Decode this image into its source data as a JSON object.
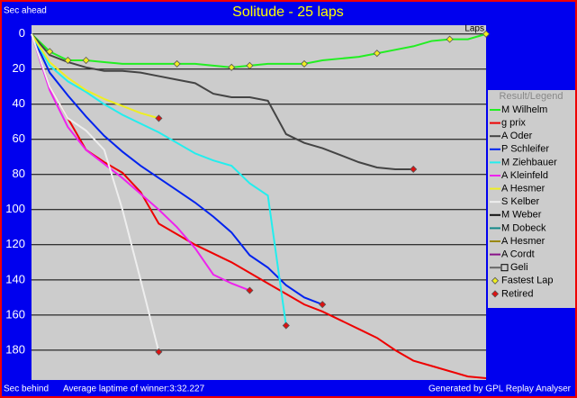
{
  "chart_data": {
    "type": "line",
    "title": "Solitude - 25 laps",
    "y_top_label": "Sec ahead",
    "y_bottom_label": "Sec behind",
    "x_label": "Laps",
    "footer_left": "Average laptime of winner:3:32.227",
    "footer_right": "Generated by GPL Replay Analyser",
    "legend_title": "Result/Legend",
    "y_inverted": true,
    "grid": true,
    "xlim": [
      0,
      25
    ],
    "ylim": [
      -5,
      197
    ],
    "yticks": [
      0,
      20,
      40,
      60,
      80,
      100,
      120,
      140,
      160,
      180
    ],
    "x": [
      0,
      1,
      2,
      3,
      4,
      5,
      6,
      7,
      8,
      9,
      10,
      11,
      12,
      13,
      14,
      15,
      16,
      17,
      18,
      19,
      20,
      21,
      22,
      23,
      24,
      25
    ],
    "series": [
      {
        "name": "M Wilhelm",
        "color": "#22ee22",
        "values": [
          0,
          10,
          15,
          15,
          16,
          17,
          17,
          17,
          17,
          17,
          18,
          19,
          18,
          17,
          17,
          17,
          15,
          14,
          13,
          11,
          9,
          7,
          4,
          3,
          3,
          0
        ]
      },
      {
        "name": "g prix",
        "color": "#ee0000",
        "values": [
          0,
          30,
          48,
          66,
          73,
          79,
          90,
          108,
          114,
          120,
          125,
          130,
          136,
          142,
          148,
          154,
          158,
          163,
          168,
          173,
          180,
          186,
          189,
          192,
          195,
          196
        ]
      },
      {
        "name": "A Oder",
        "color": "#444444",
        "values": [
          0,
          12,
          16,
          19,
          21,
          21,
          22,
          24,
          26,
          28,
          34,
          36,
          36,
          38,
          57,
          62,
          65,
          69,
          73,
          76,
          77,
          77,
          null,
          null,
          null,
          null
        ]
      },
      {
        "name": "P Schleifer",
        "color": "#0022ee",
        "values": [
          0,
          22,
          35,
          47,
          58,
          67,
          75,
          82,
          89,
          96,
          104,
          113,
          126,
          133,
          143,
          150,
          154,
          null,
          null,
          null,
          null,
          null,
          null,
          null,
          null,
          null
        ]
      },
      {
        "name": "M Ziehbauer",
        "color": "#22eeee",
        "values": [
          0,
          18,
          27,
          33,
          40,
          46,
          51,
          56,
          62,
          68,
          72,
          75,
          85,
          92,
          166,
          null,
          null,
          null,
          null,
          null,
          null,
          null,
          null,
          null,
          null,
          null
        ]
      },
      {
        "name": "A Kleinfeld",
        "color": "#ee22ee",
        "values": [
          0,
          32,
          53,
          66,
          74,
          82,
          91,
          100,
          110,
          122,
          137,
          142,
          146,
          null,
          null,
          null,
          null,
          null,
          null,
          null,
          null,
          null,
          null,
          null,
          null,
          null
        ]
      },
      {
        "name": "A Hesmer",
        "color": "#eeee22",
        "values": [
          0,
          16,
          25,
          32,
          37,
          41,
          45,
          48,
          null,
          null,
          null,
          null,
          null,
          null,
          null,
          null,
          null,
          null,
          null,
          null,
          null,
          null,
          null,
          null,
          null,
          null
        ]
      },
      {
        "name": "S Kelber",
        "color": "#eeeeee",
        "values": [
          0,
          30,
          48,
          55,
          66,
          100,
          140,
          181,
          null,
          null,
          null,
          null,
          null,
          null,
          null,
          null,
          null,
          null,
          null,
          null,
          null,
          null,
          null,
          null,
          null,
          null
        ]
      },
      {
        "name": "M Weber",
        "color": "#111111",
        "values": [
          null,
          null,
          null,
          null,
          null,
          null,
          null,
          null,
          null,
          null,
          null,
          null,
          null,
          null,
          null,
          null,
          null,
          null,
          null,
          null,
          null,
          null,
          null,
          null,
          null,
          null
        ]
      },
      {
        "name": "M Dobeck",
        "color": "#118888",
        "values": [
          null,
          null,
          null,
          null,
          null,
          null,
          null,
          null,
          null,
          null,
          null,
          null,
          null,
          null,
          null,
          null,
          null,
          null,
          null,
          null,
          null,
          null,
          null,
          null,
          null,
          null
        ]
      },
      {
        "name": "A Hesmer",
        "color": "#998811",
        "values": [
          null,
          null,
          null,
          null,
          null,
          null,
          null,
          null,
          null,
          null,
          null,
          null,
          null,
          null,
          null,
          null,
          null,
          null,
          null,
          null,
          null,
          null,
          null,
          null,
          null,
          null
        ]
      },
      {
        "name": "A Cordt",
        "color": "#881188",
        "values": [
          null,
          null,
          null,
          null,
          null,
          null,
          null,
          null,
          null,
          null,
          null,
          null,
          null,
          null,
          null,
          null,
          null,
          null,
          null,
          null,
          null,
          null,
          null,
          null,
          null,
          null
        ]
      },
      {
        "name": "Geli",
        "color": "#666666",
        "legend_box": true,
        "values": [
          null,
          null,
          null,
          null,
          null,
          null,
          null,
          null,
          null,
          null,
          null,
          null,
          null,
          null,
          null,
          null,
          null,
          null,
          null,
          null,
          null,
          null,
          null,
          null,
          null,
          null
        ]
      },
      {
        "name": "Fastest Lap",
        "color": "#eeee22",
        "marker": "diamond",
        "x": [
          1,
          2,
          3,
          8,
          11,
          12,
          15,
          19,
          23,
          25
        ],
        "values": [
          10,
          15,
          15,
          17,
          19,
          18,
          17,
          11,
          3,
          0
        ]
      },
      {
        "name": "Retired",
        "color": "#dd1111",
        "marker": "diamond",
        "x": [
          7,
          7,
          12,
          14,
          16,
          21
        ],
        "values": [
          48,
          181,
          146,
          166,
          154,
          77
        ]
      }
    ]
  }
}
